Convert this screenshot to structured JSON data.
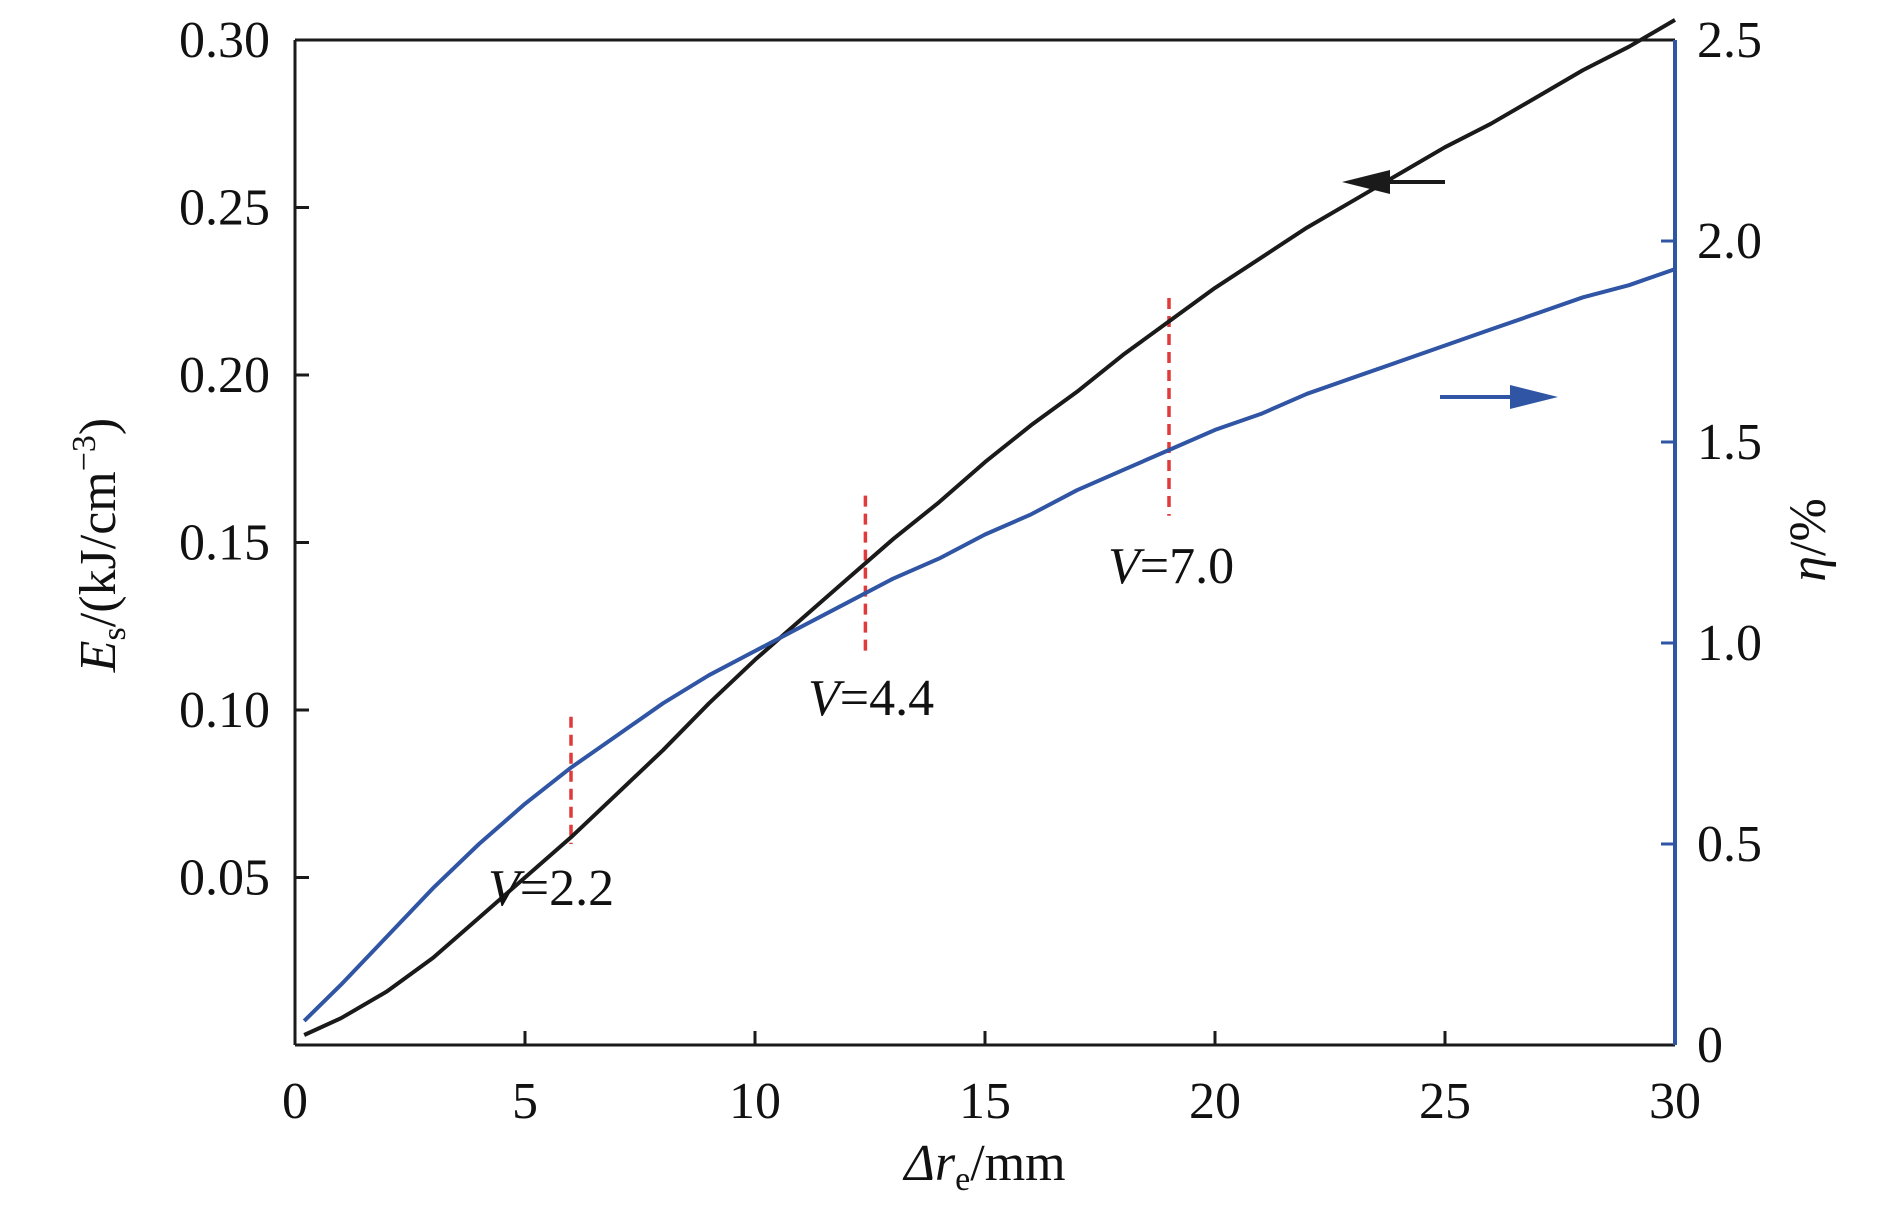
{
  "chart_data": {
    "type": "line",
    "xlabel": {
      "symbol": "Δr",
      "subscript": "e",
      "unit": "/mm"
    },
    "ylabel_left": {
      "symbol": "E",
      "subscript": "s",
      "unit": "/(kJ/cm",
      "superscript": "−3",
      "close": ")"
    },
    "ylabel_right": {
      "symbol": "η",
      "unit": "/%"
    },
    "xlim": [
      0,
      30
    ],
    "ylim_left": [
      0,
      0.3
    ],
    "ylim_right": [
      0,
      2.5
    ],
    "x_ticks": [
      "0",
      "5",
      "10",
      "15",
      "20",
      "25",
      "30"
    ],
    "y_left_ticks": [
      "0.05",
      "0.10",
      "0.15",
      "0.20",
      "0.25",
      "0.30"
    ],
    "y_right_ticks": [
      "0",
      "0.5",
      "1.0",
      "1.5",
      "2.0",
      "2.5"
    ],
    "series": [
      {
        "axis": "left",
        "color": "#1a1a1a",
        "x": [
          0.2,
          1,
          2,
          3,
          4,
          5,
          6,
          7,
          8,
          9,
          10,
          11,
          12,
          13,
          14,
          15,
          16,
          17,
          18,
          19,
          20,
          21,
          22,
          23,
          24,
          25,
          26,
          27,
          28,
          29,
          30
        ],
        "y": [
          0.003,
          0.008,
          0.016,
          0.026,
          0.038,
          0.05,
          0.062,
          0.075,
          0.088,
          0.102,
          0.115,
          0.127,
          0.139,
          0.151,
          0.162,
          0.174,
          0.185,
          0.195,
          0.206,
          0.216,
          0.226,
          0.235,
          0.244,
          0.252,
          0.26,
          0.268,
          0.275,
          0.283,
          0.291,
          0.298,
          0.306
        ]
      },
      {
        "axis": "right",
        "color": "#2f55a4",
        "x": [
          0.2,
          1,
          2,
          3,
          4,
          5,
          6,
          7,
          8,
          9,
          10,
          11,
          12,
          13,
          14,
          15,
          16,
          17,
          18,
          19,
          20,
          21,
          22,
          23,
          24,
          25,
          26,
          27,
          28,
          29,
          30
        ],
        "y": [
          0.06,
          0.15,
          0.27,
          0.39,
          0.5,
          0.6,
          0.69,
          0.77,
          0.85,
          0.92,
          0.98,
          1.04,
          1.1,
          1.16,
          1.21,
          1.27,
          1.32,
          1.38,
          1.43,
          1.48,
          1.53,
          1.57,
          1.62,
          1.66,
          1.7,
          1.74,
          1.78,
          1.82,
          1.86,
          1.89,
          1.93
        ]
      }
    ],
    "markers": [
      {
        "x": 6.0,
        "y_top": 0.098,
        "y_bottom": 0.06,
        "label_var": "V",
        "label_value": "=2.2"
      },
      {
        "x": 12.4,
        "y_top": 0.164,
        "y_bottom": 0.117,
        "label_var": "V",
        "label_value": "=4.4"
      },
      {
        "x": 19.0,
        "y_top": 0.223,
        "y_bottom": 0.158,
        "label_var": "V",
        "label_value": "=7.0"
      }
    ],
    "marker_color": "#e03a3a",
    "arrows": [
      {
        "points_to": "left",
        "color": "#1a1a1a"
      },
      {
        "points_to": "right",
        "color": "#2f55a4"
      }
    ],
    "grid": false,
    "legend": "none"
  }
}
